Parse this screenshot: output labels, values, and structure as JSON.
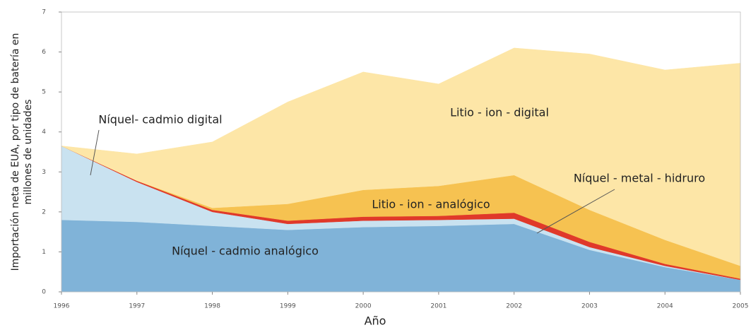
{
  "chart_data": {
    "type": "stacked_area",
    "ylabel": [
      "Importación neta de EUA, por tipo de batería en",
      "millones de unidades"
    ],
    "xlabel": "Año",
    "x": [
      1996,
      1997,
      1998,
      1999,
      2000,
      2001,
      2002,
      2003,
      2004,
      2005
    ],
    "xlim": [
      1996,
      2005
    ],
    "xticks": [
      1996,
      1997,
      1998,
      1999,
      2000,
      2001,
      2002,
      2003,
      2004,
      2005
    ],
    "ylim": [
      0,
      7
    ],
    "yticks": [
      0,
      1,
      2,
      3,
      4,
      5,
      6,
      7
    ],
    "grid": false,
    "series": [
      {
        "name": "Níquel - cadmio analógico",
        "color": "#80b3d8",
        "values": [
          1.8,
          1.75,
          1.65,
          1.55,
          1.62,
          1.65,
          1.7,
          1.05,
          0.62,
          0.3
        ]
      },
      {
        "name": "Níquel- cadmio digital",
        "color": "#c9e2f0",
        "values": [
          1.85,
          1.0,
          0.35,
          0.15,
          0.16,
          0.15,
          0.13,
          0.07,
          0.03,
          0.0
        ]
      },
      {
        "name": "Níquel - metal - hidruro",
        "color": "#e0392a",
        "values": [
          0,
          0.03,
          0.05,
          0.08,
          0.1,
          0.1,
          0.15,
          0.13,
          0.05,
          0.03
        ]
      },
      {
        "name": "Litio - ion - analógico",
        "color": "#f6c251",
        "values": [
          0,
          0,
          0.05,
          0.42,
          0.67,
          0.75,
          0.94,
          0.8,
          0.6,
          0.32
        ]
      },
      {
        "name": "Litio - ion - digital",
        "color": "#fde6a7",
        "values": [
          0,
          0.67,
          1.65,
          2.55,
          2.95,
          2.55,
          3.18,
          3.9,
          4.25,
          5.07
        ]
      }
    ]
  }
}
